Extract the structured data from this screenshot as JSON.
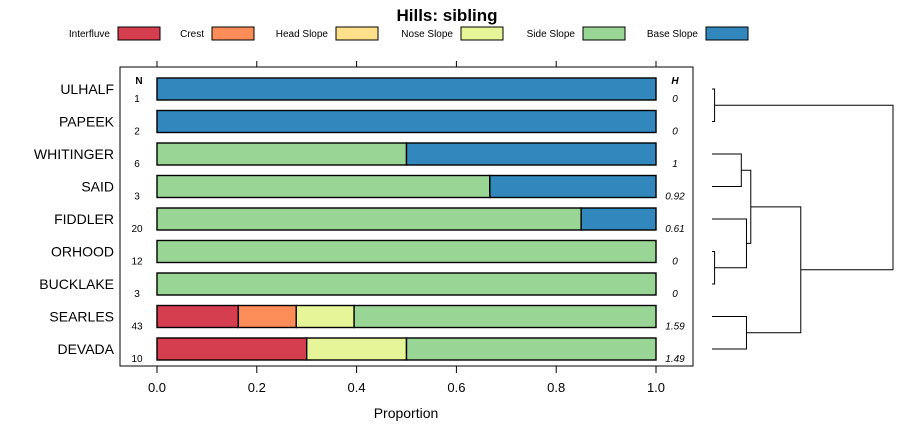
{
  "chart_data": {
    "type": "bar",
    "stacked": true,
    "orientation": "horizontal",
    "title": "Hills: sibling",
    "xlabel": "Proportion",
    "ylabel": "",
    "xlim": [
      0,
      1
    ],
    "xticks": [
      0,
      0.2,
      0.4,
      0.6,
      0.8,
      1
    ],
    "xtick_labels": [
      "0.0",
      "0.2",
      "0.4",
      "0.6",
      "0.8",
      "1.0"
    ],
    "legend_position": "top",
    "n_header": "N",
    "h_header": "H",
    "categories": [
      "ULHALF",
      "PAPEEK",
      "WHITINGER",
      "SAID",
      "FIDDLER",
      "ORHOOD",
      "BUCKLAKE",
      "SEARLES",
      "DEVADA"
    ],
    "n": [
      "1",
      "2",
      "6",
      "3",
      "20",
      "12",
      "3",
      "43",
      "10"
    ],
    "h": [
      "0",
      "0",
      "1",
      "0.92",
      "0.61",
      "0",
      "0",
      "1.59",
      "1.49"
    ],
    "series": [
      {
        "name": "Interfluve",
        "color": "#d53e4f",
        "values": [
          0,
          0,
          0,
          0,
          0,
          0,
          0,
          0.163,
          0.3
        ]
      },
      {
        "name": "Crest",
        "color": "#fc8d59",
        "values": [
          0,
          0,
          0,
          0,
          0,
          0,
          0,
          0.116,
          0
        ]
      },
      {
        "name": "Head Slope",
        "color": "#fee08b",
        "values": [
          0,
          0,
          0,
          0,
          0,
          0,
          0,
          0,
          0
        ]
      },
      {
        "name": "Nose Slope",
        "color": "#e6f598",
        "values": [
          0,
          0,
          0,
          0,
          0,
          0,
          0,
          0.116,
          0.2
        ]
      },
      {
        "name": "Side Slope",
        "color": "#99d594",
        "values": [
          0,
          0,
          0.5,
          0.667,
          0.85,
          1,
          1,
          0.605,
          0.5
        ]
      },
      {
        "name": "Base Slope",
        "color": "#3288bd",
        "values": [
          1,
          1,
          0.5,
          0.333,
          0.15,
          0,
          0,
          0,
          0
        ]
      }
    ],
    "dendrogram": {
      "merges": [
        {
          "a": "ULHALF",
          "b": "PAPEEK",
          "height": 0.03
        },
        {
          "a": "ORHOOD",
          "b": "BUCKLAKE",
          "height": 0.03
        },
        {
          "a": "WHITINGER",
          "b": "SAID",
          "height": 0.34
        },
        {
          "a": "FIDDLER",
          "b": "ORHOOD+BUCKLAKE",
          "height": 0.4
        },
        {
          "a": "SEARLES",
          "b": "DEVADA",
          "height": 0.4
        },
        {
          "a": "WHITINGER+SAID",
          "b": "FIDDLER+ORHOOD+BUCKLAKE",
          "height": 0.45
        },
        {
          "a": "WHITINGER+SAID+FIDDLER+ORHOOD+BUCKLAKE",
          "b": "SEARLES+DEVADA",
          "height": 1.03
        },
        {
          "a": "ULHALF+PAPEEK",
          "b": "WHITINGER+SAID+FIDDLER+ORHOOD+BUCKLAKE+SEARLES+DEVADA",
          "height": 2.1
        }
      ]
    }
  }
}
